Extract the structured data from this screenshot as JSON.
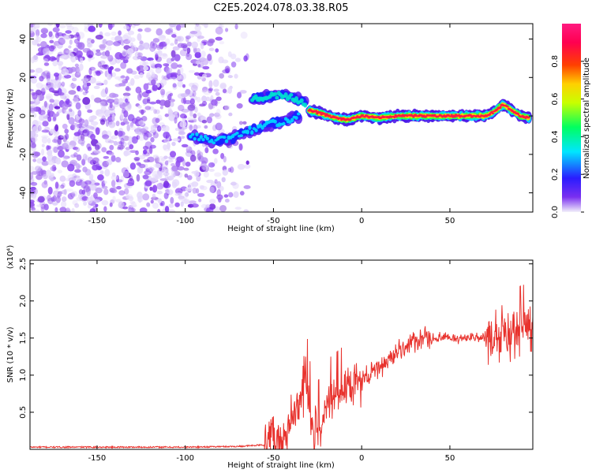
{
  "title": "C2E5.2024.078.03.38.R05",
  "colorbar": {
    "label": "Normalized spectral amplitude",
    "ticks": [
      "0.0",
      "0.2",
      "0.4",
      "0.6",
      "0.8"
    ],
    "tick_values": [
      0.0,
      0.2,
      0.4,
      0.6,
      0.8
    ]
  },
  "chart_data": [
    {
      "type": "heatmap",
      "xlabel": "Height of straight line (km)",
      "ylabel": "Frequency (Hz)",
      "xlim": [
        -188,
        97
      ],
      "ylim": [
        -50,
        48
      ],
      "xticks": [
        -150,
        -100,
        -50,
        0,
        50
      ],
      "yticks": [
        -40,
        -20,
        0,
        20,
        40
      ],
      "xtick_labels": [
        "-150",
        "-100",
        "-50",
        "0",
        "50"
      ],
      "ytick_labels": [
        "-40",
        "-20",
        "0",
        "20",
        "40"
      ],
      "colormap": "rainbow (purple→blue→cyan→green→yellow→red→magenta)",
      "zlim": [
        0,
        1
      ],
      "features": [
        {
          "description": "noise region",
          "x_range": [
            -188,
            -62
          ],
          "freq_range": [
            -50,
            48
          ],
          "amplitude": "low (0.0–0.1)"
        },
        {
          "description": "lower trace",
          "points": [
            [
              -97,
              -10
            ],
            [
              -85,
              -13
            ],
            [
              -75,
              -12
            ],
            [
              -65,
              -8
            ],
            [
              -55,
              -5
            ],
            [
              -45,
              -3
            ],
            [
              -35,
              0
            ]
          ]
        },
        {
          "description": "upper trace",
          "points": [
            [
              -62,
              9
            ],
            [
              -55,
              10
            ],
            [
              -45,
              11
            ],
            [
              -38,
              9
            ],
            [
              -32,
              7
            ]
          ]
        },
        {
          "description": "main trace",
          "points": [
            [
              -30,
              3
            ],
            [
              -22,
              1
            ],
            [
              -15,
              -1
            ],
            [
              -8,
              -2
            ],
            [
              0,
              0
            ],
            [
              10,
              -1
            ],
            [
              20,
              0
            ],
            [
              30,
              0
            ],
            [
              40,
              0
            ],
            [
              50,
              0
            ],
            [
              60,
              0
            ],
            [
              70,
              0
            ],
            [
              75,
              2
            ],
            [
              80,
              6
            ],
            [
              85,
              3
            ],
            [
              90,
              0
            ],
            [
              95,
              -1
            ]
          ],
          "amplitude": "high (0.6–1.0)"
        }
      ]
    },
    {
      "type": "line",
      "xlabel": "Height of straight line (km)",
      "ylabel": "SNR (10 * v/v)",
      "y_multiplier": "(x10⁴)",
      "xlim": [
        -188,
        97
      ],
      "ylim": [
        0,
        2.55
      ],
      "xticks": [
        -150,
        -100,
        -50,
        0,
        50
      ],
      "yticks": [
        0.5,
        1.0,
        1.5,
        2.0,
        2.5
      ],
      "xtick_labels": [
        "-150",
        "-100",
        "-50",
        "0",
        "50"
      ],
      "ytick_labels": [
        "0.5",
        "1.0",
        "1.5",
        "2.0",
        "2.5"
      ],
      "series": [
        {
          "color": "#e8322d",
          "x": [
            -188,
            -150,
            -100,
            -70,
            -55,
            -50,
            -45,
            -40,
            -35,
            -32,
            -30,
            -28,
            -25,
            -20,
            -15,
            -10,
            -5,
            0,
            5,
            10,
            15,
            20,
            25,
            30,
            40,
            50,
            60,
            70,
            80,
            85,
            90,
            95,
            97
          ],
          "y": [
            0.03,
            0.03,
            0.03,
            0.04,
            0.06,
            0.2,
            0.1,
            0.3,
            0.6,
            1.0,
            0.5,
            0.2,
            0.3,
            0.6,
            0.7,
            0.8,
            0.8,
            0.95,
            1.0,
            1.1,
            1.2,
            1.3,
            1.4,
            1.45,
            1.5,
            1.5,
            1.5,
            1.5,
            1.5,
            1.55,
            1.6,
            1.65,
            1.5
          ]
        }
      ]
    }
  ]
}
